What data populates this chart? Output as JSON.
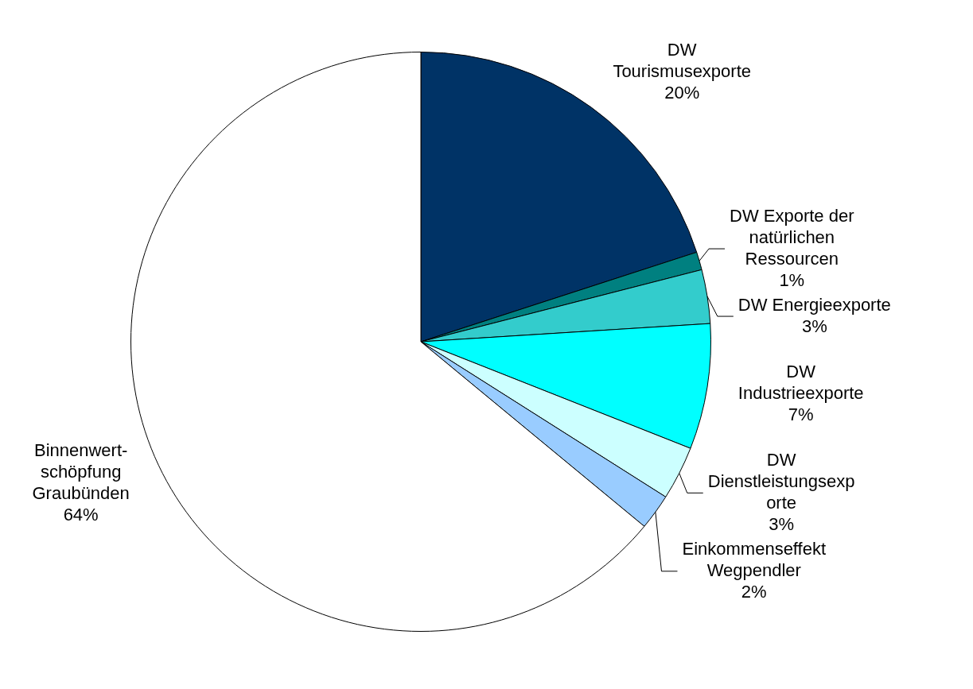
{
  "chart_data": {
    "type": "pie",
    "categories": [
      "DW\nTourismusexporte",
      "DW Exporte der\nnatürlichen\nRessourcen",
      "DW Energieexporte",
      "DW\nIndustrieexporte",
      "DW\nDienstleistungsexp\norte",
      "Einkommenseffekt\nWegpendler",
      "Binnenwert-\nschöpfung\nGraubünden"
    ],
    "values": [
      20,
      1,
      3,
      7,
      3,
      2,
      64
    ],
    "value_labels": [
      "20%",
      "1%",
      "3%",
      "7%",
      "3%",
      "2%",
      "64%"
    ],
    "colors": [
      "#003366",
      "#008080",
      "#33cccc",
      "#00ffff",
      "#ccffff",
      "#99ccff",
      "#ffffff"
    ],
    "legend": false
  }
}
